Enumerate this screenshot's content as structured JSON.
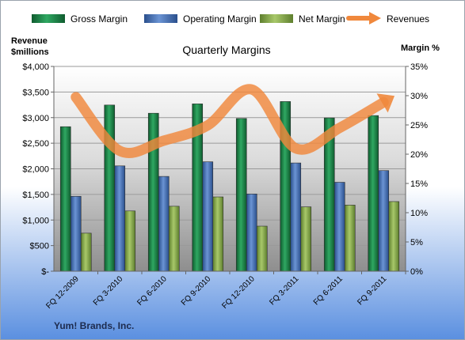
{
  "chart_data": {
    "type": "bar",
    "title": "Quarterly Margins",
    "footer": "Yum! Brands, Inc.",
    "left_axis_label_line1": "Revenue",
    "left_axis_label_line2": "$millions",
    "right_axis_label": "Margin %",
    "categories": [
      "FQ 12-2009",
      "FQ 3-2010",
      "FQ 6-2010",
      "FQ 9-2010",
      "FQ 12-2010",
      "FQ 3-2011",
      "FQ 6-2011",
      "FQ 9-2011"
    ],
    "series": [
      {
        "name": "Gross Margin",
        "type": "bar",
        "axis": "right",
        "color": "#1f8a4c",
        "values": [
          24.7,
          28.4,
          27.0,
          28.6,
          26.1,
          29.0,
          26.2,
          26.6
        ]
      },
      {
        "name": "Operating Margin",
        "type": "bar",
        "axis": "right",
        "color": "#4a74b8",
        "values": [
          12.8,
          18.0,
          16.2,
          18.7,
          13.2,
          18.5,
          15.2,
          17.2
        ]
      },
      {
        "name": "Net Margin",
        "type": "bar",
        "axis": "right",
        "color": "#8db04f",
        "values": [
          6.5,
          10.3,
          11.1,
          12.7,
          7.7,
          11.0,
          11.3,
          11.9
        ]
      },
      {
        "name": "Revenues",
        "type": "line",
        "axis": "left",
        "color": "#f0883c",
        "values": [
          3400,
          2350,
          2550,
          2850,
          3550,
          2400,
          2800,
          3300
        ]
      }
    ],
    "left_axis": {
      "min": 0,
      "max": 4000,
      "step": 500,
      "format": "dollar"
    },
    "right_axis": {
      "min": 0,
      "max": 35,
      "step": 5,
      "format": "percent"
    },
    "legend_position": "top",
    "grid": true
  }
}
